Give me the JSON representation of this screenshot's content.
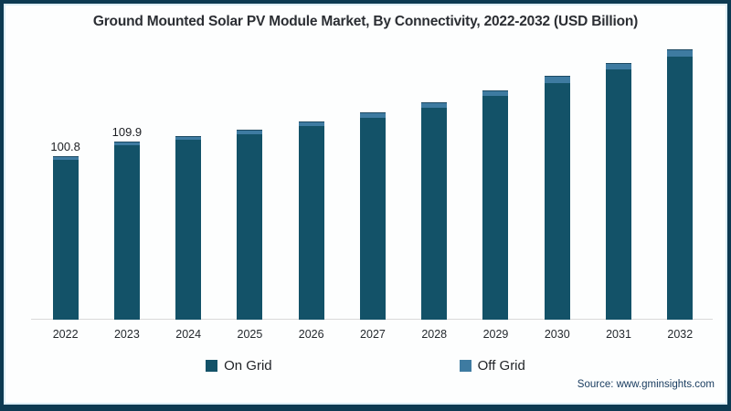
{
  "chart_data": {
    "type": "bar",
    "stacked": true,
    "title": "Ground Mounted Solar PV Module Market, By Connectivity, 2022-2032 (USD Billion)",
    "unit": "USD Billion",
    "categories": [
      "2022",
      "2023",
      "2024",
      "2025",
      "2026",
      "2027",
      "2028",
      "2029",
      "2030",
      "2031",
      "2032"
    ],
    "series": [
      {
        "name": "On Grid",
        "color": "#135268",
        "values": [
          98.8,
          107.6,
          110.9,
          114.3,
          119.2,
          124.5,
          130.4,
          137.9,
          146.1,
          154.1,
          162.2
        ]
      },
      {
        "name": "Off Grid",
        "color": "#3e7ba1",
        "values": [
          2.0,
          2.3,
          2.4,
          2.6,
          2.8,
          3.1,
          3.4,
          3.7,
          4.0,
          4.4,
          4.7
        ]
      }
    ],
    "totals": [
      100.8,
      109.9,
      113.3,
      116.9,
      122.0,
      127.6,
      133.8,
      141.6,
      150.1,
      158.5,
      166.9
    ],
    "point_labels": [
      "100.8",
      "109.9",
      "",
      "",
      "",
      "",
      "",
      "",
      "",
      "",
      ""
    ],
    "xlabel": "",
    "ylabel": "",
    "ylim": [
      0,
      175
    ],
    "grid": false,
    "legend_position": "bottom"
  },
  "legend": {
    "on_grid_label": "On Grid",
    "off_grid_label": "Off Grid"
  },
  "source_text": "Source: www.gminsights.com",
  "colors": {
    "frame_border": "#0d3a52",
    "on_grid": "#135268",
    "off_grid": "#3e7ba1",
    "axis_line": "#d9d9d9",
    "title_text": "#2b2e33",
    "source_text": "#173a5e"
  }
}
